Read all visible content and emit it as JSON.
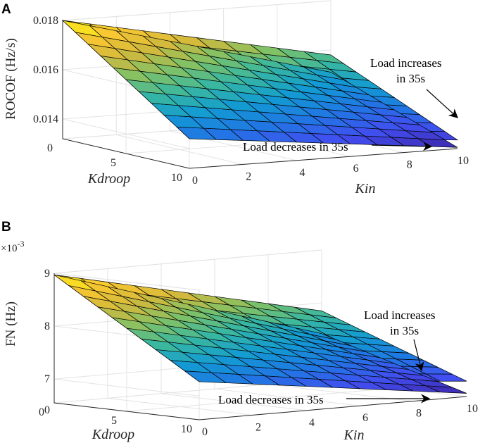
{
  "chart_data": [
    {
      "panel": "A",
      "type": "surface",
      "zlabel": "ROCOF (Hz/s)",
      "xlabel": "Kin",
      "ylabel": "Kdroop",
      "x_ticks": [
        "0",
        "2",
        "4",
        "6",
        "8",
        "10"
      ],
      "y_ticks": [
        "0",
        "5",
        "10"
      ],
      "z_ticks": [
        "0.014",
        "0.016",
        "0.018"
      ],
      "z_tick_values": [
        0.014,
        0.016,
        0.018
      ],
      "xlim": [
        0,
        10
      ],
      "ylim": [
        0,
        10
      ],
      "zlim": [
        0.0132,
        0.018
      ],
      "grid": true,
      "colormap": "parula",
      "series": [
        {
          "name": "Load increases in 35s",
          "corner_values": {
            "kin0_kd0": 0.018,
            "kin10_kd0": 0.0158,
            "kin0_kd10": 0.0144,
            "kin10_kd10": 0.01355
          }
        },
        {
          "name": "Load decreases in 35s",
          "corner_values": {
            "kin0_kd0": 0.018,
            "kin10_kd0": 0.0151,
            "kin0_kd10": 0.0144,
            "kin10_kd10": 0.01325
          }
        }
      ],
      "annotations": [
        {
          "lines": [
            "Load increases",
            "in 35s"
          ]
        },
        {
          "lines": [
            "Load decreases in 35s"
          ]
        }
      ]
    },
    {
      "panel": "B",
      "type": "surface",
      "zlabel": "FN (Hz)",
      "multiplier": "×10",
      "multiplier_exp": "-3",
      "xlabel": "Kin",
      "ylabel": "Kdroop",
      "x_ticks": [
        "0",
        "2",
        "4",
        "6",
        "8",
        "10"
      ],
      "y_ticks": [
        "0",
        "5",
        "10"
      ],
      "z_ticks": [
        "0",
        "7",
        "8",
        "9"
      ],
      "z_tick_values": [
        0,
        7,
        8,
        9
      ],
      "xlim": [
        0,
        10
      ],
      "ylim": [
        0,
        10
      ],
      "zlim": [
        6.55,
        9
      ],
      "grid": true,
      "colormap": "parula",
      "series": [
        {
          "name": "Load increases in 35s",
          "corner_values": {
            "kin0_kd0": 8.97,
            "kin10_kd0": 7.85,
            "kin0_kd10": 7.27,
            "kin10_kd10": 6.84
          }
        },
        {
          "name": "Load decreases in 35s",
          "corner_values": {
            "kin0_kd0": 8.97,
            "kin10_kd0": 7.42,
            "kin0_kd10": 7.27,
            "kin10_kd10": 6.61
          }
        }
      ],
      "annotations": [
        {
          "lines": [
            "Load increases",
            "in 35s"
          ]
        },
        {
          "lines": [
            "Load decreases in 35s"
          ]
        }
      ]
    }
  ]
}
